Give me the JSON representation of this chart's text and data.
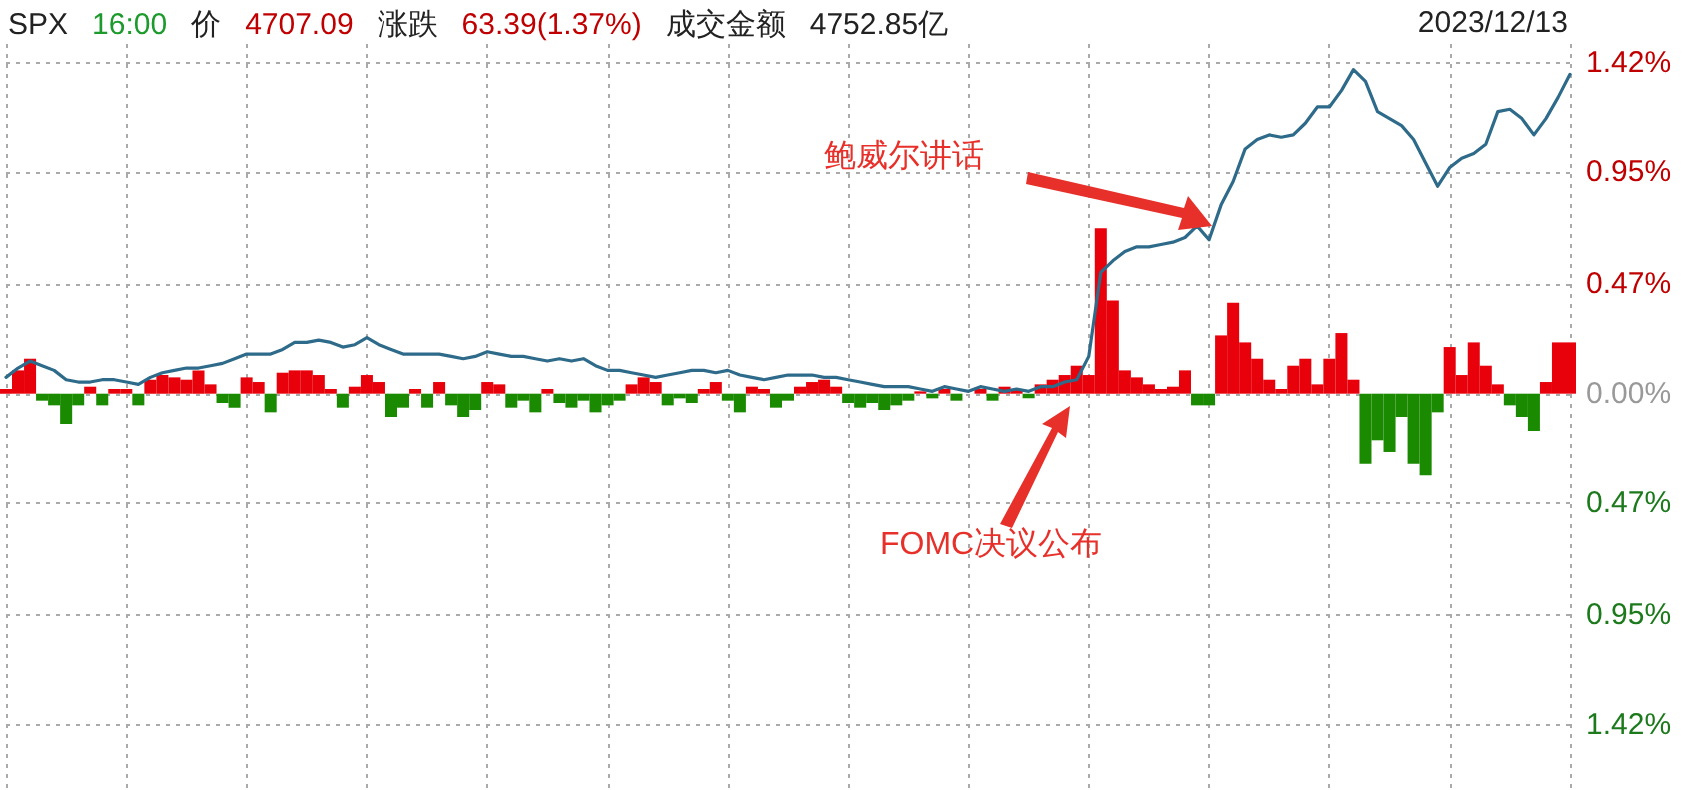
{
  "chart_data": {
    "type": "line",
    "title": "SPX",
    "annotations": [
      "16:00",
      "价",
      "4707.09",
      "涨跌",
      "63.39(1.37%)",
      "成交金额",
      "4752.85亿",
      "2023/12/13",
      "鲍威尔讲话",
      "FOMC决议公布"
    ],
    "categories": [
      null,
      null,
      null,
      null,
      null,
      null,
      null,
      null,
      null,
      null,
      null,
      null,
      null,
      null,
      null,
      null,
      null,
      null,
      null,
      null,
      null,
      null,
      null,
      null,
      null,
      null,
      null,
      null,
      null,
      null,
      null,
      null,
      null,
      null,
      null,
      null,
      null,
      null,
      null,
      null,
      null,
      null,
      null,
      null,
      null,
      null,
      null,
      null,
      null,
      null,
      null,
      null,
      null,
      null,
      null,
      null,
      null,
      null,
      null,
      null,
      null,
      null,
      null,
      null,
      null,
      null,
      null,
      null,
      null,
      null,
      null,
      null,
      null,
      null,
      null,
      null,
      null,
      null,
      null,
      null,
      null,
      null,
      null,
      null,
      null,
      null,
      null,
      null,
      null,
      null,
      null,
      null,
      null,
      null,
      null,
      null,
      null,
      null,
      null,
      null,
      null,
      null,
      null,
      null,
      null,
      null,
      null,
      null,
      null,
      null,
      null,
      null,
      null,
      null,
      null,
      null,
      null,
      null,
      null,
      null,
      null,
      null,
      null,
      null,
      null,
      null,
      null,
      null,
      null,
      null,
      null
    ],
    "series": [
      {
        "type": "bar",
        "color": "#e8000b",
        "values": [
          0.02,
          0.1,
          0.15,
          null,
          null,
          null,
          null,
          0.03,
          null,
          0.02,
          0.02,
          null,
          0.06,
          0.08,
          0.07,
          0.06,
          0.1,
          0.04,
          null,
          null,
          0.07,
          0.05,
          null,
          0.09,
          0.1,
          0.1,
          0.08,
          0.02,
          null,
          0.03,
          0.08,
          0.05,
          null,
          null,
          0.02,
          null,
          0.05,
          null,
          null,
          null,
          0.05,
          0.04,
          null,
          null,
          null,
          0.02,
          null,
          null,
          null,
          null,
          null,
          null,
          0.04,
          0.07,
          0.05,
          null,
          null,
          null,
          0.02,
          0.05,
          null,
          null,
          0.03,
          0.02,
          null,
          null,
          0.03,
          0.05,
          0.06,
          0.03,
          null,
          null,
          null,
          null,
          null,
          null,
          0.01,
          null,
          0.02,
          null,
          null,
          0.02,
          null,
          0.03,
          0.02,
          null,
          0.04,
          0.06,
          0.08,
          0.12,
          0.08,
          0.71,
          0.4,
          0.1,
          0.07,
          0.04,
          0.02,
          0.03,
          0.1,
          null,
          null,
          0.25,
          0.39,
          0.22,
          0.15,
          0.06,
          0.02,
          0.12,
          0.15,
          0.04,
          0.15,
          0.26,
          0.06,
          null,
          null,
          null,
          null,
          null,
          null,
          null,
          0.2,
          0.08,
          0.22,
          0.12,
          0.04,
          null,
          null,
          null,
          0.05,
          0.22,
          0.22
        ]
      },
      {
        "type": "bar",
        "color": "#1a8a00",
        "values": [
          null,
          null,
          null,
          -0.03,
          -0.05,
          -0.13,
          -0.05,
          null,
          -0.05,
          null,
          null,
          -0.05,
          null,
          null,
          null,
          null,
          null,
          null,
          -0.04,
          -0.06,
          null,
          null,
          -0.08,
          null,
          null,
          null,
          null,
          null,
          -0.06,
          null,
          null,
          null,
          -0.1,
          -0.06,
          null,
          -0.06,
          null,
          -0.05,
          -0.1,
          -0.07,
          null,
          null,
          -0.06,
          -0.03,
          -0.08,
          null,
          -0.04,
          -0.06,
          -0.03,
          -0.08,
          -0.05,
          -0.03,
          null,
          null,
          null,
          -0.05,
          -0.02,
          -0.04,
          null,
          null,
          -0.03,
          -0.08,
          null,
          null,
          -0.06,
          -0.03,
          null,
          null,
          null,
          null,
          -0.04,
          -0.06,
          -0.04,
          -0.07,
          -0.05,
          -0.03,
          null,
          -0.02,
          null,
          -0.03,
          null,
          null,
          -0.03,
          null,
          null,
          -0.02,
          null,
          null,
          null,
          null,
          null,
          null,
          null,
          null,
          null,
          null,
          null,
          null,
          null,
          -0.05,
          -0.05,
          null,
          null,
          null,
          null,
          null,
          null,
          null,
          null,
          null,
          null,
          null,
          null,
          -0.3,
          -0.2,
          -0.25,
          -0.1,
          -0.3,
          -0.35,
          -0.08,
          null,
          null,
          null,
          null,
          null,
          -0.05,
          -0.1,
          -0.16,
          null,
          null,
          null
        ]
      },
      {
        "color": "#2e6b8a",
        "values": [
          0.07,
          0.11,
          0.14,
          0.12,
          0.1,
          0.06,
          0.05,
          0.05,
          0.06,
          0.06,
          0.05,
          0.04,
          0.07,
          0.09,
          0.1,
          0.11,
          0.11,
          0.12,
          0.13,
          0.15,
          0.17,
          0.17,
          0.17,
          0.19,
          0.22,
          0.22,
          0.23,
          0.22,
          0.2,
          0.21,
          0.24,
          0.21,
          0.19,
          0.17,
          0.17,
          0.17,
          0.17,
          0.16,
          0.15,
          0.16,
          0.18,
          0.17,
          0.16,
          0.16,
          0.15,
          0.14,
          0.15,
          0.14,
          0.15,
          0.12,
          0.1,
          0.1,
          0.09,
          0.08,
          0.07,
          0.08,
          0.09,
          0.1,
          0.1,
          0.09,
          0.1,
          0.08,
          0.07,
          0.06,
          0.07,
          0.08,
          0.08,
          0.08,
          0.07,
          0.07,
          0.06,
          0.05,
          0.04,
          0.03,
          0.03,
          0.03,
          0.02,
          0.01,
          0.03,
          0.02,
          0.01,
          0.03,
          0.02,
          0.01,
          0.02,
          0.01,
          0.03,
          0.03,
          0.05,
          0.06,
          0.16,
          0.52,
          0.57,
          0.61,
          0.63,
          0.63,
          0.64,
          0.65,
          0.67,
          0.72,
          0.66,
          0.81,
          0.91,
          1.05,
          1.09,
          1.11,
          1.1,
          1.11,
          1.16,
          1.23,
          1.23,
          1.3,
          1.39,
          1.34,
          1.21,
          1.18,
          1.15,
          1.09,
          0.99,
          0.89,
          0.97,
          1.01,
          1.03,
          1.07,
          1.21,
          1.22,
          1.18,
          1.11,
          1.18,
          1.27,
          1.37
        ]
      }
    ],
    "ylim": [
      -1.7,
      1.5
    ],
    "yticks": [
      {
        "value": 1.42,
        "label": "1.42%"
      },
      {
        "value": 0.95,
        "label": "0.95%"
      },
      {
        "value": 0.47,
        "label": "0.47%"
      },
      {
        "value": 0,
        "label": "0.00%"
      },
      {
        "value": -0.47,
        "label": "0.47%"
      },
      {
        "value": -0.95,
        "label": "0.95%"
      },
      {
        "value": -1.42,
        "label": "1.42%"
      }
    ],
    "grid": true,
    "line_style": "solid"
  }
}
